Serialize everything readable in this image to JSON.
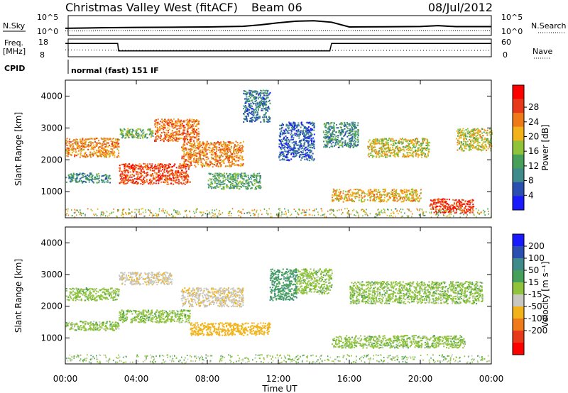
{
  "header": {
    "radar_title": "Christmas Valley West (fitACF)",
    "beam": "Beam 06",
    "date": "08/Jul/2012",
    "mode": "normal (fast) 151 IF"
  },
  "panel_labels": {
    "nsky": "N.Sky",
    "nsearch": "N.Search",
    "freq": "Freq.",
    "freq_unit": "[MHz]",
    "nave": "Nave",
    "cpid": "CPID",
    "noise_left_top": "10^5",
    "noise_left_bottom": "10^0",
    "noise_right_top": "10^5",
    "noise_right_bottom": "10^0",
    "freq_left_top": "18",
    "freq_left_bottom": "8",
    "nave_right_top": "60",
    "nave_right_bottom": "0"
  },
  "axes": {
    "x_ticks": [
      "00:00",
      "04:00",
      "08:00",
      "12:00",
      "16:00",
      "20:00",
      "00:00"
    ],
    "x_label": "Time UT",
    "y_ticks": [
      "1000",
      "2000",
      "3000",
      "4000"
    ],
    "y_label": "Slant Range [km]"
  },
  "colorbars": {
    "power": {
      "label": "Power [dB]",
      "ticks": [
        "4",
        "8",
        "12",
        "16",
        "20",
        "24",
        "28"
      ],
      "colors": [
        "#1a1aff",
        "#2a4fb0",
        "#3f8a8a",
        "#46a05a",
        "#8fc43a",
        "#f2b21a",
        "#f07a1a",
        "#e83a1a",
        "#ff0000"
      ]
    },
    "velocity": {
      "label": "Velocity [m s⁻¹]",
      "ticks": [
        "200",
        "100",
        "50",
        "15",
        "-15",
        "-50",
        "-100",
        "-200"
      ],
      "colors": [
        "#1a1aff",
        "#2a4fb0",
        "#3f8a8a",
        "#46a05a",
        "#8fc43a",
        "#c8c8c0",
        "#f2b21a",
        "#f07a1a",
        "#e83a1a",
        "#ff0000"
      ]
    }
  },
  "chart_data": [
    {
      "type": "line",
      "title": "N.Sky / N.Search",
      "x_range_hours": [
        0,
        24
      ],
      "y_scale": "log",
      "ylim": [
        1,
        100000
      ],
      "series": [
        {
          "name": "N.Sky",
          "x": [
            0,
            2,
            4,
            6,
            8,
            10,
            11,
            12,
            13,
            14,
            15,
            16,
            18,
            20,
            21,
            22,
            24
          ],
          "y": [
            50,
            70,
            90,
            100,
            120,
            180,
            500,
            2000,
            6000,
            8000,
            3000,
            120,
            140,
            160,
            300,
            150,
            150
          ]
        },
        {
          "name": "N.Search",
          "x": [
            0,
            4,
            8,
            12,
            16,
            20,
            24
          ],
          "y": [
            8,
            9,
            9,
            10,
            9,
            9,
            9
          ]
        }
      ]
    },
    {
      "type": "line",
      "title": "Freq. / Nave",
      "x_range_hours": [
        0,
        24
      ],
      "series": [
        {
          "name": "Freq. [MHz]",
          "x": [
            0,
            2.95,
            3.0,
            14.9,
            15.0,
            24
          ],
          "y": [
            16,
            16,
            11,
            11,
            16,
            16
          ]
        },
        {
          "name": "Nave",
          "x": [
            0,
            4,
            8,
            12,
            16,
            20,
            24
          ],
          "y": [
            22,
            20,
            20,
            20,
            20,
            20,
            20
          ]
        }
      ]
    },
    {
      "type": "heatmap",
      "title": "Power [dB]",
      "x_range_hours": [
        0,
        24
      ],
      "ylim": [
        180,
        4500
      ],
      "regions": [
        {
          "t0": 0.0,
          "t1": 3.0,
          "r0": 2100,
          "r1": 2700,
          "value": 22
        },
        {
          "t0": 0.0,
          "t1": 2.5,
          "r0": 1300,
          "r1": 1600,
          "value": 10
        },
        {
          "t0": 3.0,
          "t1": 7.0,
          "r0": 1250,
          "r1": 1900,
          "value": 26
        },
        {
          "t0": 6.5,
          "t1": 10.0,
          "r0": 1800,
          "r1": 2600,
          "value": 22
        },
        {
          "t0": 5.0,
          "t1": 7.5,
          "r0": 2600,
          "r1": 3300,
          "value": 24
        },
        {
          "t0": 3.0,
          "t1": 5.0,
          "r0": 2700,
          "r1": 3000,
          "value": 14
        },
        {
          "t0": 8.0,
          "t1": 11.0,
          "r0": 1100,
          "r1": 1600,
          "value": 12
        },
        {
          "t0": 12.0,
          "t1": 14.0,
          "r0": 2000,
          "r1": 3200,
          "value": 6
        },
        {
          "t0": 14.5,
          "t1": 16.5,
          "r0": 2400,
          "r1": 3200,
          "value": 10
        },
        {
          "t0": 17.0,
          "t1": 20.5,
          "r0": 2100,
          "r1": 2700,
          "value": 18
        },
        {
          "t0": 22.0,
          "t1": 24.0,
          "r0": 2300,
          "r1": 3000,
          "value": 18
        },
        {
          "t0": 15.0,
          "t1": 20.0,
          "r0": 700,
          "r1": 1100,
          "value": 20
        },
        {
          "t0": 20.5,
          "t1": 23.0,
          "r0": 350,
          "r1": 800,
          "value": 28
        },
        {
          "t0": 10.0,
          "t1": 11.5,
          "r0": 3200,
          "r1": 4200,
          "value": 8
        }
      ]
    },
    {
      "type": "heatmap",
      "title": "Velocity [m s⁻¹]",
      "x_range_hours": [
        0,
        24
      ],
      "ylim": [
        180,
        4500
      ],
      "regions": [
        {
          "t0": 0.0,
          "t1": 3.0,
          "r0": 2200,
          "r1": 2600,
          "value": 0
        },
        {
          "t0": 3.0,
          "t1": 7.0,
          "r0": 1500,
          "r1": 1900,
          "value": 0
        },
        {
          "t0": 3.0,
          "t1": 6.0,
          "r0": 2700,
          "r1": 3100,
          "value": -40
        },
        {
          "t0": 6.5,
          "t1": 10.0,
          "r0": 2000,
          "r1": 2600,
          "value": -40
        },
        {
          "t0": 7.0,
          "t1": 11.5,
          "r0": 1100,
          "r1": 1500,
          "value": -80
        },
        {
          "t0": 11.5,
          "t1": 13.0,
          "r0": 2200,
          "r1": 3200,
          "value": 40
        },
        {
          "t0": 13.0,
          "t1": 15.0,
          "r0": 2400,
          "r1": 3200,
          "value": 0
        },
        {
          "t0": 16.0,
          "t1": 23.5,
          "r0": 2100,
          "r1": 2800,
          "value": 0
        },
        {
          "t0": 15.0,
          "t1": 22.5,
          "r0": 700,
          "r1": 1100,
          "value": 0
        },
        {
          "t0": 0.0,
          "t1": 3.0,
          "r0": 1250,
          "r1": 1550,
          "value": 0
        }
      ]
    }
  ]
}
